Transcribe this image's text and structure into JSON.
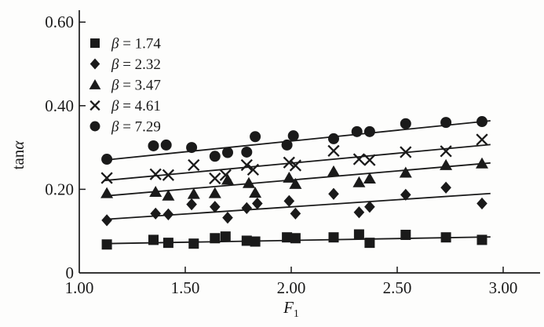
{
  "figure": {
    "background": "#fdfdfc",
    "ink": "#1a1a1a"
  },
  "chart_data": {
    "type": "scatter",
    "title": "",
    "xlabel": "F",
    "xlabel_subscript": "1",
    "ylabel_prefix": "tan",
    "ylabel_symbol": "α",
    "xlim": [
      1.0,
      3.05
    ],
    "ylim": [
      0,
      0.63
    ],
    "grid": false,
    "legend_position": "top-left-inside",
    "x_ticks": [
      {
        "value": 1.0,
        "label": "1.00",
        "tick_mark": false
      },
      {
        "value": 1.5,
        "label": "1.50",
        "tick_mark": true
      },
      {
        "value": 2.0,
        "label": "2.00",
        "tick_mark": true
      },
      {
        "value": 2.5,
        "label": "2.50",
        "tick_mark": true
      },
      {
        "value": 3.0,
        "label": "3.00",
        "tick_mark": true
      }
    ],
    "y_ticks": [
      {
        "value": 0,
        "label": "0",
        "tick_mark": false
      },
      {
        "value": 0.2,
        "label": "0.20",
        "tick_mark": true
      },
      {
        "value": 0.4,
        "label": "0.40",
        "tick_mark": true
      },
      {
        "value": 0.6,
        "label": "0.60",
        "tick_mark": true
      }
    ],
    "series": [
      {
        "name": "β = 1.74",
        "marker": "square",
        "points": [
          [
            1.13,
            0.068
          ],
          [
            1.35,
            0.079
          ],
          [
            1.42,
            0.072
          ],
          [
            1.54,
            0.07
          ],
          [
            1.64,
            0.083
          ],
          [
            1.69,
            0.087
          ],
          [
            1.79,
            0.077
          ],
          [
            1.83,
            0.075
          ],
          [
            1.98,
            0.085
          ],
          [
            2.02,
            0.083
          ],
          [
            2.2,
            0.085
          ],
          [
            2.32,
            0.092
          ],
          [
            2.37,
            0.072
          ],
          [
            2.54,
            0.091
          ],
          [
            2.73,
            0.085
          ],
          [
            2.9,
            0.079
          ]
        ],
        "trend_line": {
          "x1": 1.12,
          "y1": 0.07,
          "x2": 2.94,
          "y2": 0.086
        }
      },
      {
        "name": "β = 2.32",
        "marker": "diamond",
        "points": [
          [
            1.13,
            0.126
          ],
          [
            1.36,
            0.142
          ],
          [
            1.42,
            0.14
          ],
          [
            1.53,
            0.164
          ],
          [
            1.64,
            0.158
          ],
          [
            1.7,
            0.132
          ],
          [
            1.79,
            0.155
          ],
          [
            1.84,
            0.166
          ],
          [
            1.99,
            0.172
          ],
          [
            2.02,
            0.142
          ],
          [
            2.2,
            0.189
          ],
          [
            2.32,
            0.145
          ],
          [
            2.37,
            0.158
          ],
          [
            2.54,
            0.187
          ],
          [
            2.73,
            0.204
          ],
          [
            2.9,
            0.166
          ]
        ],
        "trend_line": {
          "x1": 1.12,
          "y1": 0.128,
          "x2": 2.94,
          "y2": 0.19
        }
      },
      {
        "name": "β = 3.47",
        "marker": "triangle",
        "points": [
          [
            1.13,
            0.191
          ],
          [
            1.36,
            0.194
          ],
          [
            1.42,
            0.185
          ],
          [
            1.54,
            0.189
          ],
          [
            1.64,
            0.191
          ],
          [
            1.7,
            0.223
          ],
          [
            1.8,
            0.215
          ],
          [
            1.83,
            0.192
          ],
          [
            1.99,
            0.228
          ],
          [
            2.02,
            0.213
          ],
          [
            2.2,
            0.243
          ],
          [
            2.32,
            0.217
          ],
          [
            2.37,
            0.226
          ],
          [
            2.54,
            0.24
          ],
          [
            2.73,
            0.258
          ],
          [
            2.9,
            0.262
          ]
        ],
        "trend_line": {
          "x1": 1.12,
          "y1": 0.184,
          "x2": 2.94,
          "y2": 0.263
        }
      },
      {
        "name": "β = 4.61",
        "marker": "x",
        "points": [
          [
            1.13,
            0.227
          ],
          [
            1.36,
            0.236
          ],
          [
            1.42,
            0.234
          ],
          [
            1.54,
            0.258
          ],
          [
            1.64,
            0.226
          ],
          [
            1.69,
            0.234
          ],
          [
            1.79,
            0.258
          ],
          [
            1.82,
            0.247
          ],
          [
            1.99,
            0.264
          ],
          [
            2.02,
            0.257
          ],
          [
            2.2,
            0.292
          ],
          [
            2.32,
            0.272
          ],
          [
            2.37,
            0.27
          ],
          [
            2.54,
            0.289
          ],
          [
            2.73,
            0.291
          ],
          [
            2.9,
            0.319
          ]
        ],
        "trend_line": {
          "x1": 1.12,
          "y1": 0.221,
          "x2": 2.94,
          "y2": 0.307
        }
      },
      {
        "name": "β = 7.29",
        "marker": "circle",
        "points": [
          [
            1.13,
            0.272
          ],
          [
            1.35,
            0.304
          ],
          [
            1.41,
            0.306
          ],
          [
            1.53,
            0.3
          ],
          [
            1.64,
            0.279
          ],
          [
            1.7,
            0.288
          ],
          [
            1.79,
            0.289
          ],
          [
            1.83,
            0.326
          ],
          [
            1.98,
            0.306
          ],
          [
            2.01,
            0.328
          ],
          [
            2.2,
            0.321
          ],
          [
            2.31,
            0.338
          ],
          [
            2.37,
            0.338
          ],
          [
            2.54,
            0.357
          ],
          [
            2.73,
            0.36
          ],
          [
            2.9,
            0.362
          ]
        ],
        "trend_line": {
          "x1": 1.12,
          "y1": 0.27,
          "x2": 2.94,
          "y2": 0.364
        }
      }
    ]
  }
}
